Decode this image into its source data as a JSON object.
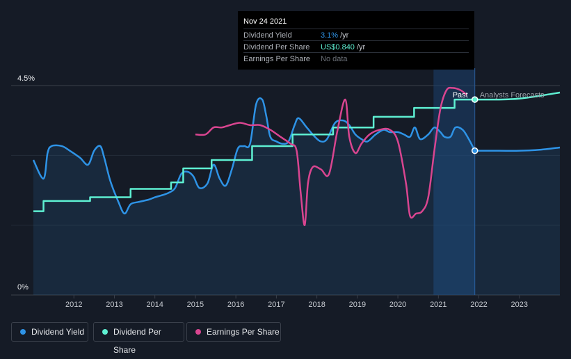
{
  "tooltip": {
    "date": "Nov 24 2021",
    "rows": [
      {
        "label": "Dividend Yield",
        "value": "3.1%",
        "unit": "/yr",
        "color": "#2e93e6"
      },
      {
        "label": "Dividend Per Share",
        "value": "US$0.840",
        "unit": "/yr",
        "color": "#5ef0d2"
      },
      {
        "label": "Earnings Per Share",
        "value": "No data",
        "unit": "",
        "color": "#6b7078"
      }
    ]
  },
  "legend": [
    {
      "label": "Dividend Yield",
      "color": "#2e93e6"
    },
    {
      "label": "Dividend Per Share",
      "color": "#5ef0d2"
    },
    {
      "label": "Earnings Per Share",
      "color": "#d94590"
    }
  ],
  "chart_data": {
    "type": "line",
    "y_top_label": "4.5%",
    "y_bottom_label": "0%",
    "ylim": [
      0,
      4.5
    ],
    "xlim": [
      2011.0,
      2024.0
    ],
    "x_ticks": [
      "2012",
      "2013",
      "2014",
      "2015",
      "2016",
      "2017",
      "2018",
      "2019",
      "2020",
      "2021",
      "2022",
      "2023"
    ],
    "past_label": "Past",
    "forecast_label": "Analysts Forecasts",
    "forecast_start": 2021.9,
    "highlight_range": [
      2020.88,
      2021.9
    ],
    "grid": true,
    "series": [
      {
        "name": "Dividend Yield",
        "color": "#2e93e6",
        "fill": true,
        "points": [
          [
            2011.0,
            2.9
          ],
          [
            2011.25,
            2.5
          ],
          [
            2011.35,
            3.05
          ],
          [
            2011.45,
            3.2
          ],
          [
            2011.7,
            3.2
          ],
          [
            2011.9,
            3.1
          ],
          [
            2012.15,
            2.95
          ],
          [
            2012.35,
            2.8
          ],
          [
            2012.5,
            3.1
          ],
          [
            2012.65,
            3.2
          ],
          [
            2012.75,
            2.95
          ],
          [
            2012.9,
            2.45
          ],
          [
            2013.1,
            2.0
          ],
          [
            2013.25,
            1.75
          ],
          [
            2013.4,
            1.95
          ],
          [
            2013.6,
            2.0
          ],
          [
            2013.85,
            2.05
          ],
          [
            2014.0,
            2.1
          ],
          [
            2014.2,
            2.15
          ],
          [
            2014.35,
            2.2
          ],
          [
            2014.5,
            2.3
          ],
          [
            2014.65,
            2.6
          ],
          [
            2014.8,
            2.65
          ],
          [
            2014.95,
            2.55
          ],
          [
            2015.1,
            2.3
          ],
          [
            2015.3,
            2.4
          ],
          [
            2015.45,
            2.8
          ],
          [
            2015.6,
            2.5
          ],
          [
            2015.75,
            2.35
          ],
          [
            2015.9,
            2.7
          ],
          [
            2016.05,
            3.15
          ],
          [
            2016.2,
            3.2
          ],
          [
            2016.35,
            3.25
          ],
          [
            2016.5,
            4.1
          ],
          [
            2016.65,
            4.2
          ],
          [
            2016.75,
            3.85
          ],
          [
            2016.85,
            3.4
          ],
          [
            2017.0,
            3.3
          ],
          [
            2017.15,
            3.25
          ],
          [
            2017.3,
            3.3
          ],
          [
            2017.45,
            3.65
          ],
          [
            2017.55,
            3.8
          ],
          [
            2017.75,
            3.6
          ],
          [
            2017.95,
            3.4
          ],
          [
            2018.1,
            3.3
          ],
          [
            2018.25,
            3.35
          ],
          [
            2018.45,
            3.7
          ],
          [
            2018.65,
            3.75
          ],
          [
            2018.8,
            3.65
          ],
          [
            2018.95,
            3.45
          ],
          [
            2019.1,
            3.35
          ],
          [
            2019.25,
            3.3
          ],
          [
            2019.45,
            3.45
          ],
          [
            2019.65,
            3.55
          ],
          [
            2019.8,
            3.5
          ],
          [
            2020.0,
            3.5
          ],
          [
            2020.15,
            3.45
          ],
          [
            2020.3,
            3.4
          ],
          [
            2020.42,
            3.6
          ],
          [
            2020.55,
            3.35
          ],
          [
            2020.75,
            3.45
          ],
          [
            2020.9,
            3.6
          ],
          [
            2021.05,
            3.5
          ],
          [
            2021.15,
            3.4
          ],
          [
            2021.3,
            3.4
          ],
          [
            2021.42,
            3.6
          ],
          [
            2021.6,
            3.55
          ],
          [
            2021.75,
            3.35
          ],
          [
            2021.9,
            3.1
          ]
        ]
      },
      {
        "name": "Dividend Yield Forecast",
        "color": "#2e93e6",
        "fill": true,
        "points": [
          [
            2021.9,
            3.1
          ],
          [
            2022.5,
            3.1
          ],
          [
            2023.0,
            3.1
          ],
          [
            2023.5,
            3.12
          ],
          [
            2024.0,
            3.17
          ]
        ]
      },
      {
        "name": "Dividend Per Share",
        "color": "#5ef0d2",
        "fill": false,
        "step": true,
        "points": [
          [
            2011.0,
            1.8
          ],
          [
            2011.25,
            1.8
          ],
          [
            2011.25,
            2.02
          ],
          [
            2012.4,
            2.02
          ],
          [
            2012.4,
            2.1
          ],
          [
            2013.4,
            2.1
          ],
          [
            2013.4,
            2.28
          ],
          [
            2014.4,
            2.28
          ],
          [
            2014.4,
            2.42
          ],
          [
            2014.7,
            2.42
          ],
          [
            2014.7,
            2.72
          ],
          [
            2015.4,
            2.72
          ],
          [
            2015.4,
            2.9
          ],
          [
            2016.4,
            2.9
          ],
          [
            2016.4,
            3.2
          ],
          [
            2017.4,
            3.2
          ],
          [
            2017.4,
            3.45
          ],
          [
            2018.4,
            3.45
          ],
          [
            2018.4,
            3.6
          ],
          [
            2019.4,
            3.6
          ],
          [
            2019.4,
            3.83
          ],
          [
            2020.4,
            3.83
          ],
          [
            2020.4,
            4.02
          ],
          [
            2021.4,
            4.02
          ],
          [
            2021.4,
            4.2
          ],
          [
            2021.9,
            4.2
          ]
        ]
      },
      {
        "name": "Dividend Per Share Forecast",
        "color": "#5ef0d2",
        "fill": false,
        "points": [
          [
            2021.9,
            4.2
          ],
          [
            2022.5,
            4.2
          ],
          [
            2023.0,
            4.22
          ],
          [
            2023.5,
            4.28
          ],
          [
            2024.0,
            4.35
          ]
        ]
      },
      {
        "name": "Earnings Per Share",
        "color": "#d94590",
        "fill": false,
        "points": [
          [
            2015.0,
            3.45
          ],
          [
            2015.25,
            3.45
          ],
          [
            2015.45,
            3.6
          ],
          [
            2015.65,
            3.6
          ],
          [
            2015.85,
            3.65
          ],
          [
            2016.1,
            3.7
          ],
          [
            2016.35,
            3.65
          ],
          [
            2016.6,
            3.65
          ],
          [
            2016.85,
            3.55
          ],
          [
            2017.1,
            3.4
          ],
          [
            2017.35,
            3.25
          ],
          [
            2017.5,
            3.1
          ],
          [
            2017.6,
            2.2
          ],
          [
            2017.7,
            1.5
          ],
          [
            2017.78,
            2.4
          ],
          [
            2017.9,
            2.75
          ],
          [
            2018.1,
            2.7
          ],
          [
            2018.3,
            2.6
          ],
          [
            2018.5,
            3.5
          ],
          [
            2018.7,
            4.2
          ],
          [
            2018.8,
            3.4
          ],
          [
            2018.95,
            3.05
          ],
          [
            2019.1,
            3.25
          ],
          [
            2019.3,
            3.45
          ],
          [
            2019.55,
            3.55
          ],
          [
            2019.8,
            3.55
          ],
          [
            2020.0,
            3.3
          ],
          [
            2020.2,
            2.4
          ],
          [
            2020.3,
            1.7
          ],
          [
            2020.45,
            1.75
          ],
          [
            2020.6,
            1.8
          ],
          [
            2020.75,
            2.1
          ],
          [
            2020.9,
            3.1
          ],
          [
            2021.05,
            4.0
          ],
          [
            2021.2,
            4.4
          ],
          [
            2021.35,
            4.45
          ],
          [
            2021.55,
            4.4
          ],
          [
            2021.7,
            4.3
          ]
        ]
      }
    ],
    "markers": [
      {
        "series": "Dividend Per Share",
        "x": 2021.9,
        "y": 4.2
      },
      {
        "series": "Dividend Yield",
        "x": 2021.9,
        "y": 3.1
      }
    ]
  }
}
